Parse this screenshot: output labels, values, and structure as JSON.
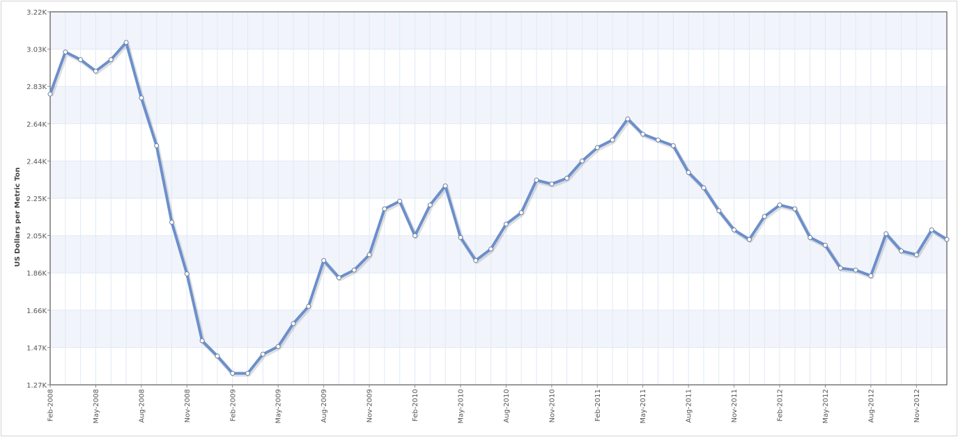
{
  "chart_data": {
    "type": "line",
    "title": "",
    "xlabel": "",
    "ylabel": "US Dollars per Metric Ton",
    "ylim": [
      1270,
      3220
    ],
    "y_ticks": [
      "1.27K",
      "1.47K",
      "1.66K",
      "1.86K",
      "2.05K",
      "2.25K",
      "2.44K",
      "2.64K",
      "2.83K",
      "3.03K",
      "3.22K"
    ],
    "x_tick_labels": [
      "Feb-2008",
      "May-2008",
      "Aug-2008",
      "Nov-2008",
      "Feb-2009",
      "May-2009",
      "Aug-2009",
      "Nov-2009",
      "Feb-2010",
      "May-2010",
      "Aug-2010",
      "Nov-2010",
      "Feb-2011",
      "May-2011",
      "Aug-2011",
      "Nov-2011",
      "Feb-2012",
      "May-2012",
      "Aug-2012",
      "Nov-2012"
    ],
    "x": [
      "Feb-2008",
      "Mar-2008",
      "Apr-2008",
      "May-2008",
      "Jun-2008",
      "Jul-2008",
      "Aug-2008",
      "Sep-2008",
      "Oct-2008",
      "Nov-2008",
      "Dec-2008",
      "Jan-2009",
      "Feb-2009",
      "Mar-2009",
      "Apr-2009",
      "May-2009",
      "Jun-2009",
      "Jul-2009",
      "Aug-2009",
      "Sep-2009",
      "Oct-2009",
      "Nov-2009",
      "Dec-2009",
      "Jan-2010",
      "Feb-2010",
      "Mar-2010",
      "Apr-2010",
      "May-2010",
      "Jun-2010",
      "Jul-2010",
      "Aug-2010",
      "Sep-2010",
      "Oct-2010",
      "Nov-2010",
      "Dec-2010",
      "Jan-2011",
      "Feb-2011",
      "Mar-2011",
      "Apr-2011",
      "May-2011",
      "Jun-2011",
      "Jul-2011",
      "Aug-2011",
      "Sep-2011",
      "Oct-2011",
      "Nov-2011",
      "Dec-2011",
      "Jan-2012",
      "Feb-2012",
      "Mar-2012",
      "Apr-2012",
      "May-2012",
      "Jun-2012",
      "Jul-2012",
      "Aug-2012",
      "Sep-2012",
      "Oct-2012",
      "Nov-2012",
      "Dec-2012",
      "Jan-2013"
    ],
    "series": [
      {
        "values": [
          2790,
          3010,
          2970,
          2910,
          2970,
          3060,
          2770,
          2520,
          2120,
          1850,
          1500,
          1420,
          1330,
          1330,
          1430,
          1470,
          1590,
          1680,
          1920,
          1830,
          1870,
          1950,
          2190,
          2230,
          2050,
          2210,
          2310,
          2040,
          1920,
          1980,
          2110,
          2170,
          2340,
          2320,
          2350,
          2440,
          2510,
          2550,
          2660,
          2580,
          2550,
          2520,
          2380,
          2300,
          2180,
          2080,
          2030,
          2150,
          2210,
          2190,
          2040,
          2000,
          1880,
          1870,
          1840,
          2060,
          1970,
          1950,
          2080,
          2030
        ]
      }
    ],
    "grid": true,
    "colors": {
      "line": "#6b8fcc",
      "band": "#f2f4fc",
      "grid": "#dfe9f2",
      "marker_fill": "#ffffff",
      "border": "#555555"
    }
  }
}
